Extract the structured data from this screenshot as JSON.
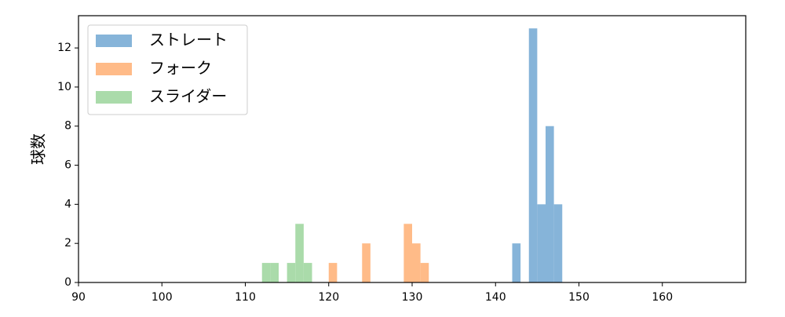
{
  "chart_data": {
    "type": "histogram",
    "ylabel": "球数",
    "xlim": [
      90,
      170
    ],
    "xticks": [
      90,
      100,
      110,
      120,
      130,
      140,
      150,
      160
    ],
    "ylim": [
      0,
      13.65
    ],
    "yticks": [
      0,
      2,
      4,
      6,
      8,
      10,
      12
    ],
    "legend": "upper left",
    "series": [
      {
        "name": "ストレート",
        "color": "#86b4d9",
        "bins": [
          142,
          143,
          144,
          145,
          146,
          147,
          148
        ],
        "values": [
          2,
          0,
          13,
          4,
          8,
          4
        ]
      },
      {
        "name": "フォーク",
        "color": "#ffbb88",
        "bins": [
          120,
          121,
          122,
          123,
          124,
          125,
          126,
          127,
          128,
          129,
          130,
          131,
          132
        ],
        "values": [
          1,
          0,
          0,
          0,
          2,
          0,
          0,
          0,
          0,
          3,
          2,
          1
        ]
      },
      {
        "name": "スライダー",
        "color": "#aadbaa",
        "bins": [
          112,
          113,
          114,
          115,
          116,
          117,
          118
        ],
        "values": [
          1,
          1,
          0,
          1,
          3,
          1
        ]
      }
    ]
  }
}
